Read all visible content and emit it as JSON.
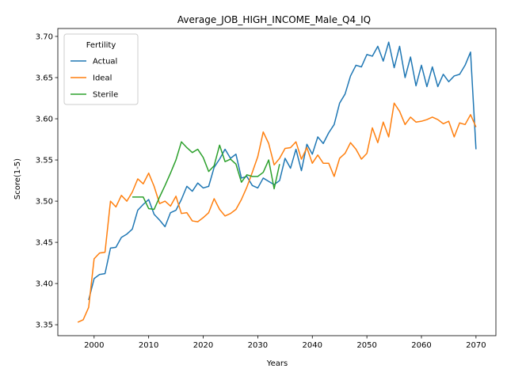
{
  "chart_data": {
    "type": "line",
    "title": "Average_JOB_HIGH_INCOME_Male_Q4_IQ",
    "xlabel": "Years",
    "ylabel": "Score(1-5)",
    "xlim": [
      1993.35,
      2073.65
    ],
    "ylim": [
      3.3367,
      3.7096
    ],
    "xticks": [
      2000,
      2010,
      2020,
      2030,
      2040,
      2050,
      2060,
      2070
    ],
    "yticks": [
      3.35,
      3.4,
      3.45,
      3.5,
      3.55,
      3.6,
      3.65,
      3.7
    ],
    "grid": false,
    "legend": {
      "title": "Fertility",
      "placement": "top-left"
    },
    "series": [
      {
        "name": "Actual",
        "color": "#1f77b4",
        "x": [
          1999,
          2000,
          2001,
          2002,
          2003,
          2004,
          2005,
          2006,
          2007,
          2008,
          2009,
          2010,
          2011,
          2012,
          2013,
          2014,
          2015,
          2016,
          2017,
          2018,
          2019,
          2020,
          2021,
          2022,
          2023,
          2024,
          2025,
          2026,
          2027,
          2028,
          2029,
          2030,
          2031,
          2032,
          2033,
          2034,
          2035,
          2036,
          2037,
          2038,
          2039,
          2040,
          2041,
          2042,
          2043,
          2044,
          2045,
          2046,
          2047,
          2048,
          2049,
          2050,
          2051,
          2052,
          2053,
          2054,
          2055,
          2056,
          2057,
          2058,
          2059,
          2060,
          2061,
          2062,
          2063,
          2064,
          2065,
          2066,
          2067,
          2068,
          2069,
          2070
        ],
        "values": [
          3.38,
          3.406,
          3.411,
          3.412,
          3.443,
          3.444,
          3.456,
          3.46,
          3.466,
          3.489,
          3.496,
          3.502,
          3.484,
          3.477,
          3.469,
          3.486,
          3.489,
          3.502,
          3.518,
          3.512,
          3.522,
          3.516,
          3.518,
          3.541,
          3.551,
          3.563,
          3.552,
          3.557,
          3.528,
          3.53,
          3.519,
          3.516,
          3.528,
          3.524,
          3.52,
          3.525,
          3.552,
          3.54,
          3.563,
          3.537,
          3.569,
          3.557,
          3.578,
          3.57,
          3.583,
          3.593,
          3.619,
          3.63,
          3.652,
          3.665,
          3.663,
          3.678,
          3.676,
          3.688,
          3.67,
          3.693,
          3.662,
          3.688,
          3.65,
          3.675,
          3.64,
          3.665,
          3.639,
          3.663,
          3.639,
          3.654,
          3.645,
          3.652,
          3.654,
          3.665,
          3.681,
          3.563
        ]
      },
      {
        "name": "Ideal",
        "color": "#ff7f0e",
        "x": [
          1997,
          1998,
          1999,
          2000,
          2001,
          2002,
          2003,
          2004,
          2005,
          2006,
          2007,
          2008,
          2009,
          2010,
          2011,
          2012,
          2013,
          2014,
          2015,
          2016,
          2017,
          2018,
          2019,
          2020,
          2021,
          2022,
          2023,
          2024,
          2025,
          2026,
          2027,
          2028,
          2029,
          2030,
          2031,
          2032,
          2033,
          2034,
          2035,
          2036,
          2037,
          2038,
          2039,
          2040,
          2041,
          2042,
          2043,
          2044,
          2045,
          2046,
          2047,
          2048,
          2049,
          2050,
          2051,
          2052,
          2053,
          2054,
          2055,
          2056,
          2057,
          2058,
          2059,
          2060,
          2061,
          2062,
          2063,
          2064,
          2065,
          2066,
          2067,
          2068,
          2069,
          2070
        ],
        "values": [
          3.353,
          3.356,
          3.371,
          3.43,
          3.437,
          3.438,
          3.5,
          3.493,
          3.507,
          3.5,
          3.511,
          3.527,
          3.521,
          3.534,
          3.518,
          3.497,
          3.5,
          3.494,
          3.506,
          3.485,
          3.486,
          3.476,
          3.475,
          3.48,
          3.486,
          3.503,
          3.49,
          3.482,
          3.485,
          3.49,
          3.502,
          3.517,
          3.535,
          3.554,
          3.584,
          3.57,
          3.544,
          3.552,
          3.564,
          3.565,
          3.572,
          3.551,
          3.565,
          3.546,
          3.556,
          3.546,
          3.546,
          3.53,
          3.552,
          3.558,
          3.571,
          3.563,
          3.551,
          3.558,
          3.589,
          3.571,
          3.596,
          3.578,
          3.619,
          3.609,
          3.593,
          3.602,
          3.596,
          3.597,
          3.599,
          3.602,
          3.599,
          3.594,
          3.597,
          3.578,
          3.595,
          3.593,
          3.605,
          3.59
        ]
      },
      {
        "name": "Sterile",
        "color": "#2ca02c",
        "x": [
          2007,
          2008,
          2009,
          2010,
          2011,
          2012,
          2013,
          2014,
          2015,
          2016,
          2017,
          2018,
          2019,
          2020,
          2021,
          2022,
          2023,
          2024,
          2025,
          2026,
          2027,
          2028,
          2029,
          2030,
          2031,
          2032,
          2033,
          2034
        ],
        "values": [
          3.505,
          3.505,
          3.505,
          3.491,
          3.49,
          3.505,
          3.519,
          3.534,
          3.55,
          3.572,
          3.565,
          3.559,
          3.563,
          3.553,
          3.536,
          3.543,
          3.568,
          3.548,
          3.551,
          3.545,
          3.523,
          3.532,
          3.53,
          3.53,
          3.535,
          3.55,
          3.515,
          3.545
        ]
      }
    ]
  }
}
